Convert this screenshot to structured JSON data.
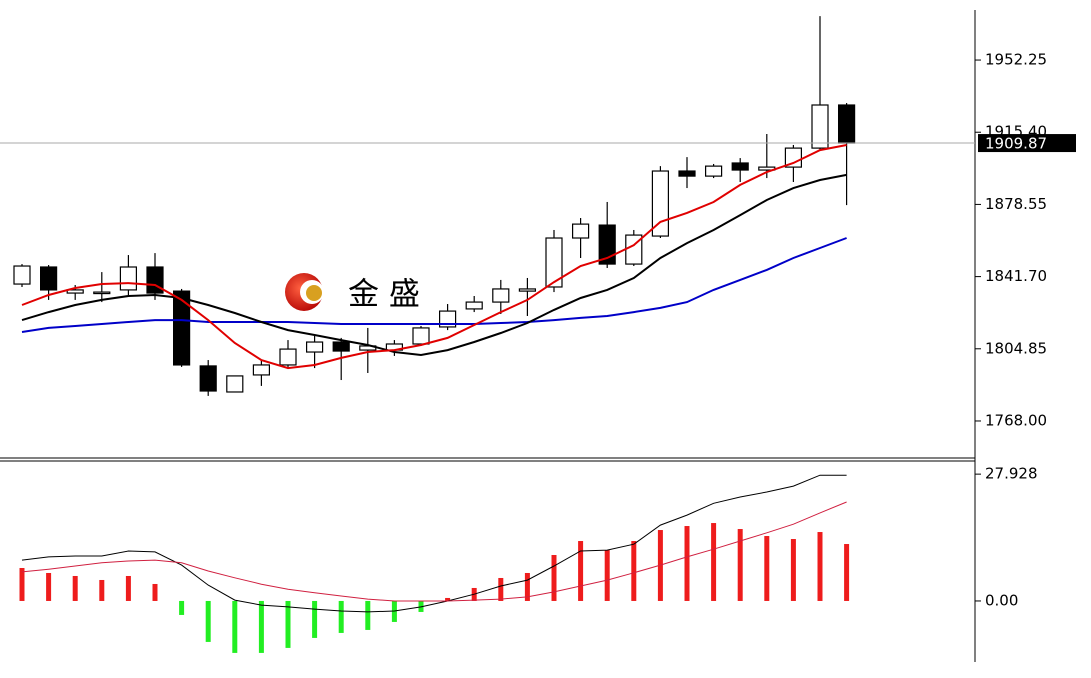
{
  "chart_data": [
    {
      "type": "candlestick",
      "open": [
        1837.9,
        1846.6,
        1833.3,
        1833.3,
        1834.9,
        1846.6,
        1834.3,
        1796.1,
        1782.8,
        1791.5,
        1796.6,
        1803.2,
        1808.3,
        1804.2,
        1804.2,
        1807.3,
        1816.0,
        1825.2,
        1828.7,
        1834.3,
        1836.4,
        1861.4,
        1868.0,
        1848.1,
        1862.4,
        1895.6,
        1893.0,
        1899.7,
        1896.1,
        1897.6,
        1907.3,
        1929.3
      ],
      "high": [
        1848.1,
        1847.6,
        1837.4,
        1844.0,
        1852.7,
        1853.7,
        1835.4,
        1799.1,
        1791.0,
        1799.1,
        1809.3,
        1811.4,
        1810.4,
        1815.5,
        1809.3,
        1816.5,
        1827.7,
        1831.8,
        1840.0,
        1841.0,
        1865.5,
        1871.6,
        1879.8,
        1865.5,
        1898.1,
        1902.7,
        1899.2,
        1902.2,
        1914.5,
        1908.9,
        1974.7,
        1930.3
      ],
      "low": [
        1836.4,
        1829.8,
        1829.8,
        1828.7,
        1832.3,
        1829.8,
        1795.6,
        1780.8,
        1782.8,
        1785.9,
        1795.0,
        1795.0,
        1788.9,
        1792.5,
        1801.2,
        1806.3,
        1814.4,
        1823.6,
        1822.6,
        1821.6,
        1833.8,
        1851.2,
        1846.1,
        1847.1,
        1861.4,
        1886.9,
        1892.0,
        1890.0,
        1892.0,
        1890.0,
        1906.3,
        1878.2
      ],
      "close": [
        1847.1,
        1834.9,
        1834.9,
        1833.8,
        1846.6,
        1833.3,
        1796.6,
        1783.3,
        1791.0,
        1796.6,
        1804.7,
        1808.3,
        1803.7,
        1806.3,
        1807.3,
        1815.5,
        1824.1,
        1828.7,
        1835.4,
        1835.4,
        1861.4,
        1868.5,
        1848.1,
        1862.9,
        1895.6,
        1893.0,
        1898.1,
        1896.1,
        1897.6,
        1907.3,
        1929.3,
        1909.87
      ],
      "lines": [
        {
          "color": "#0000c8",
          "values": [
            1813.4,
            1815.5,
            1816.5,
            1817.5,
            1818.5,
            1819.5,
            1819.5,
            1818.5,
            1818.5,
            1818.5,
            1818.5,
            1818.0,
            1817.5,
            1817.5,
            1817.5,
            1817.5,
            1817.5,
            1817.5,
            1818.0,
            1818.5,
            1819.5,
            1820.6,
            1821.6,
            1823.6,
            1825.7,
            1828.7,
            1834.9,
            1840.0,
            1845.1,
            1851.2,
            1856.3,
            1861.4
          ]
        },
        {
          "color": "#000000",
          "values": [
            1819.5,
            1823.6,
            1827.2,
            1829.8,
            1831.8,
            1832.3,
            1830.8,
            1827.2,
            1823.1,
            1818.5,
            1814.4,
            1811.9,
            1809.3,
            1806.8,
            1803.2,
            1801.7,
            1804.2,
            1808.3,
            1812.9,
            1818.0,
            1824.7,
            1830.8,
            1834.9,
            1841.0,
            1851.2,
            1858.8,
            1865.5,
            1873.1,
            1880.8,
            1886.9,
            1891.0,
            1893.6
          ]
        },
        {
          "color": "#e00000",
          "values": [
            1827.2,
            1832.3,
            1835.9,
            1837.9,
            1838.4,
            1837.4,
            1829.8,
            1819.5,
            1807.8,
            1799.1,
            1795.0,
            1796.6,
            1800.2,
            1803.2,
            1804.2,
            1806.8,
            1810.4,
            1817.0,
            1823.6,
            1829.8,
            1838.9,
            1847.1,
            1851.2,
            1857.8,
            1869.6,
            1874.2,
            1879.8,
            1888.5,
            1895.1,
            1899.7,
            1906.3,
            1908.9
          ]
        }
      ],
      "up_color": "#ffffff",
      "down_color": "#000000",
      "last_price": 1909.87,
      "watermark": "金 盛",
      "ylim": [
        1749.1,
        1982.9
      ],
      "yticks": [
        {
          "value": 1768,
          "label": "1768.00"
        },
        1804.85,
        {
          "value": 1841.7,
          "label": "1841.70"
        },
        1878.55,
        {
          "value": 1915.4,
          "label": "1915.40"
        },
        1952.25
      ]
    },
    {
      "type": "macd",
      "histogram": {
        "up_color": "#ee1c1c",
        "down_color": "#22ee22",
        "values": [
          7.26,
          6.16,
          5.5,
          4.62,
          5.5,
          3.74,
          -3.08,
          -9.02,
          -11.44,
          -11.44,
          -10.34,
          -8.14,
          -7.04,
          -6.38,
          -4.62,
          -2.42,
          0.66,
          2.86,
          5.06,
          6.16,
          10.12,
          13.2,
          11.22,
          13.2,
          15.62,
          16.5,
          17.16,
          15.84,
          14.3,
          13.64,
          15.18,
          12.54
        ]
      },
      "lines": [
        {
          "color": "#000000",
          "values": [
            9.0,
            9.7,
            9.9,
            9.9,
            11.0,
            10.8,
            7.9,
            3.5,
            0.2,
            -0.9,
            -1.3,
            -1.8,
            -2.2,
            -2.4,
            -2.2,
            -1.3,
            0.0,
            1.5,
            3.3,
            4.6,
            7.7,
            11.0,
            11.2,
            12.5,
            16.7,
            18.9,
            21.5,
            22.9,
            24.0,
            25.3,
            27.7,
            27.7
          ]
        },
        {
          "color": "#d02040",
          "values": [
            6.4,
            7.0,
            7.7,
            8.4,
            8.8,
            9.0,
            8.4,
            6.6,
            5.1,
            3.7,
            2.6,
            1.8,
            1.1,
            0.4,
            0.0,
            0.0,
            0.0,
            0.2,
            0.4,
            0.9,
            2.0,
            3.3,
            4.6,
            6.2,
            7.9,
            9.7,
            11.4,
            13.2,
            15.0,
            16.9,
            19.4,
            21.8
          ]
        }
      ],
      "ylim": [
        -13.0,
        30.6
      ],
      "yticks": [
        {
          "value": 0,
          "label": "0.00"
        },
        27.928
      ]
    }
  ]
}
